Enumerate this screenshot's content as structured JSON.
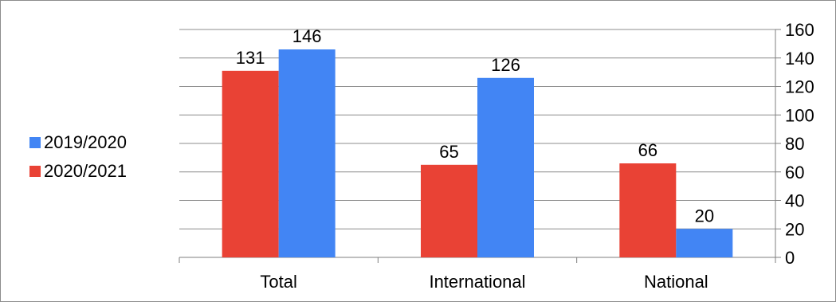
{
  "chart_data": {
    "type": "bar",
    "categories": [
      "Total",
      "International",
      "National"
    ],
    "series": [
      {
        "name": "2020/2021",
        "color": "#e94235",
        "values": [
          131,
          65,
          66
        ]
      },
      {
        "name": "2019/2020",
        "color": "#4285f4",
        "values": [
          146,
          126,
          20
        ]
      }
    ],
    "ylim": [
      0,
      160
    ],
    "yticks": [
      0,
      20,
      40,
      60,
      80,
      100,
      120,
      140,
      160
    ],
    "y_axis_side": "right",
    "grid": true,
    "legend_position": "left",
    "legend_order": [
      "2019/2020",
      "2020/2021"
    ],
    "title": "",
    "xlabel": "",
    "ylabel": ""
  },
  "legend": {
    "items": [
      {
        "label": "2019/2020",
        "color": "#4285f4"
      },
      {
        "label": "2020/2021",
        "color": "#e94235"
      }
    ]
  }
}
